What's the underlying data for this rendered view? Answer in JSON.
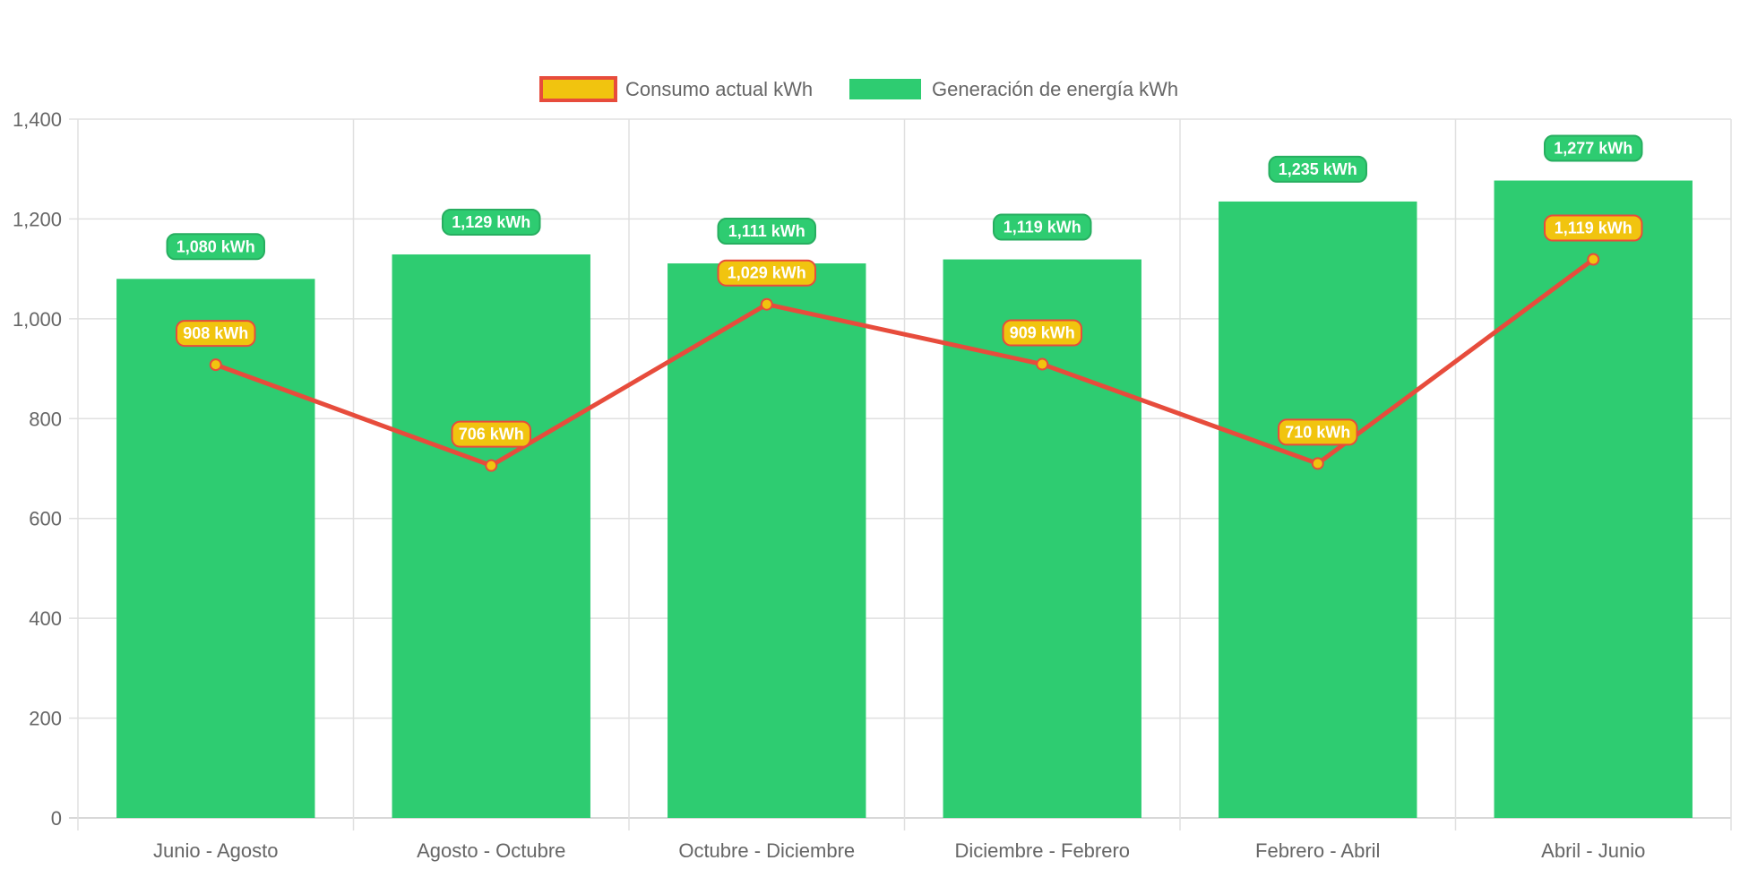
{
  "colors": {
    "bar": "#2ecc71",
    "bar_border": "#27ae60",
    "line": "#e74c3c",
    "point": "#f1c40f",
    "grid": "#e0e0e0",
    "text": "#666666"
  },
  "chart_data": {
    "type": "bar",
    "title": "",
    "xlabel": "",
    "ylabel": "",
    "ylim": [
      0,
      1400
    ],
    "yticks": [
      0,
      200,
      400,
      600,
      800,
      1000,
      1200,
      1400
    ],
    "ytick_labels": [
      "0",
      "200",
      "400",
      "600",
      "800",
      "1,000",
      "1,200",
      "1,400"
    ],
    "grid": true,
    "legend_position": "top",
    "categories": [
      "Junio - Agosto",
      "Agosto - Octubre",
      "Octubre - Diciembre",
      "Diciembre - Febrero",
      "Febrero - Abril",
      "Abril - Junio"
    ],
    "series": [
      {
        "name": "Consumo actual kWh",
        "type": "line",
        "values": [
          908,
          706,
          1029,
          909,
          710,
          1119
        ],
        "labels": [
          "908 kWh",
          "706 kWh",
          "1,029 kWh",
          "909 kWh",
          "710 kWh",
          "1,119 kWh"
        ]
      },
      {
        "name": "Generación de energía kWh",
        "type": "bar",
        "values": [
          1080,
          1129,
          1111,
          1119,
          1235,
          1277
        ],
        "labels": [
          "1,080 kWh",
          "1,129 kWh",
          "1,111 kWh",
          "1,119 kWh",
          "1,235 kWh",
          "1,277 kWh"
        ]
      }
    ]
  }
}
